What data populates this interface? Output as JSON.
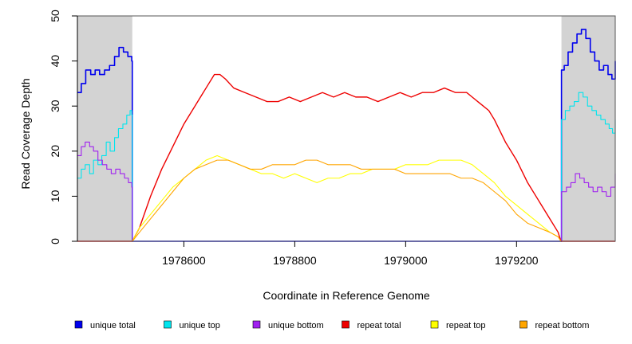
{
  "chart_data": {
    "type": "line",
    "title": "",
    "xlabel": "Coordinate in Reference Genome",
    "ylabel": "Read Coverage Depth",
    "xlim": [
      1978408,
      1979378
    ],
    "ylim": [
      0,
      50
    ],
    "x_ticks": [
      1978600,
      1978800,
      1979000,
      1979200
    ],
    "x_tick_labels": [
      "1978600",
      "1978800",
      "1979000",
      "1979200"
    ],
    "y_ticks": [
      0,
      10,
      20,
      30,
      40,
      50
    ],
    "y_tick_labels": [
      "0",
      "10",
      "20",
      "30",
      "40",
      "50"
    ],
    "shaded_regions": [
      {
        "x_start": 1978408,
        "x_end": 1978507,
        "fill": "#d3d3d3"
      },
      {
        "x_start": 1979281,
        "x_end": 1979378,
        "fill": "#d3d3d3"
      }
    ],
    "legend_position": "bottom",
    "series": [
      {
        "name": "unique total",
        "color": "#0000ee",
        "stroke_width": 1.6,
        "step": true,
        "x": [
          1978408,
          1978415,
          1978423,
          1978432,
          1978440,
          1978448,
          1978457,
          1978466,
          1978475,
          1978483,
          1978491,
          1978499,
          1978506,
          1978507,
          1978520,
          1979280,
          1979281,
          1979286,
          1979293,
          1979301,
          1979309,
          1979317,
          1979325,
          1979333,
          1979341,
          1979349,
          1979357,
          1979365,
          1979372,
          1979378
        ],
        "y": [
          33,
          35,
          38,
          37,
          38,
          37,
          38,
          39,
          41,
          43,
          42,
          41,
          40,
          0,
          0,
          0,
          38,
          39,
          42,
          44,
          46,
          47,
          45,
          42,
          40,
          38,
          39,
          37,
          36,
          40
        ]
      },
      {
        "name": "unique top",
        "color": "#00e5ee",
        "stroke_width": 1.1,
        "step": true,
        "x": [
          1978408,
          1978415,
          1978422,
          1978430,
          1978437,
          1978445,
          1978452,
          1978460,
          1978467,
          1978475,
          1978482,
          1978490,
          1978497,
          1978503,
          1978506,
          1978507,
          1978520,
          1979280,
          1979281,
          1979288,
          1979296,
          1979304,
          1979312,
          1979320,
          1979328,
          1979336,
          1979344,
          1979352,
          1979360,
          1979367,
          1979373,
          1979378
        ],
        "y": [
          14,
          16,
          17,
          15,
          18,
          17,
          19,
          22,
          20,
          23,
          25,
          26,
          28,
          29,
          28,
          0,
          0,
          0,
          27,
          29,
          30,
          31,
          33,
          32,
          30,
          29,
          28,
          27,
          26,
          25,
          24,
          27
        ]
      },
      {
        "name": "unique bottom",
        "color": "#a020f0",
        "stroke_width": 1.1,
        "step": true,
        "x": [
          1978408,
          1978415,
          1978422,
          1978430,
          1978437,
          1978445,
          1978453,
          1978461,
          1978469,
          1978477,
          1978485,
          1978493,
          1978500,
          1978506,
          1978507,
          1978520,
          1979280,
          1979281,
          1979290,
          1979298,
          1979306,
          1979314,
          1979322,
          1979330,
          1979338,
          1979346,
          1979354,
          1979362,
          1979370,
          1979378
        ],
        "y": [
          19,
          21,
          22,
          21,
          20,
          18,
          17,
          16,
          15,
          16,
          15,
          14,
          13,
          12,
          0,
          0,
          0,
          11,
          12,
          13,
          15,
          14,
          13,
          12,
          11,
          12,
          11,
          10,
          12,
          15
        ]
      },
      {
        "name": "repeat total",
        "color": "#ee0000",
        "stroke_width": 1.4,
        "step": false,
        "x": [
          1978408,
          1978506,
          1978507,
          1978520,
          1978540,
          1978560,
          1978580,
          1978600,
          1978620,
          1978640,
          1978655,
          1978665,
          1978675,
          1978690,
          1978710,
          1978730,
          1978750,
          1978770,
          1978790,
          1978810,
          1978830,
          1978850,
          1978870,
          1978890,
          1978910,
          1978930,
          1978950,
          1978970,
          1978990,
          1979010,
          1979030,
          1979050,
          1979070,
          1979090,
          1979110,
          1979120,
          1979130,
          1979140,
          1979150,
          1979160,
          1979180,
          1979200,
          1979220,
          1979240,
          1979260,
          1979275,
          1979280,
          1979378
        ],
        "y": [
          0,
          0,
          0,
          3,
          10,
          16,
          21,
          26,
          30,
          34,
          37,
          37,
          36,
          34,
          33,
          32,
          31,
          31,
          32,
          31,
          32,
          33,
          32,
          33,
          32,
          32,
          31,
          32,
          33,
          32,
          33,
          33,
          34,
          33,
          33,
          32,
          31,
          30,
          29,
          27,
          22,
          18,
          13,
          9,
          5,
          2,
          0,
          0
        ]
      },
      {
        "name": "repeat top",
        "color": "#ffff00",
        "stroke_width": 1.1,
        "step": false,
        "x": [
          1978408,
          1978506,
          1978507,
          1978520,
          1978540,
          1978560,
          1978580,
          1978600,
          1978620,
          1978640,
          1978660,
          1978680,
          1978700,
          1978720,
          1978740,
          1978760,
          1978780,
          1978800,
          1978820,
          1978840,
          1978860,
          1978880,
          1978900,
          1978920,
          1978940,
          1978960,
          1978980,
          1979000,
          1979020,
          1979040,
          1979060,
          1979080,
          1979100,
          1979120,
          1979140,
          1979160,
          1979180,
          1979200,
          1979220,
          1979240,
          1979260,
          1979275,
          1979280,
          1979378
        ],
        "y": [
          0,
          0,
          0,
          3,
          6,
          9,
          12,
          14,
          16,
          18,
          19,
          18,
          17,
          16,
          15,
          15,
          14,
          15,
          14,
          13,
          14,
          14,
          15,
          15,
          16,
          16,
          16,
          17,
          17,
          17,
          18,
          18,
          18,
          17,
          15,
          13,
          10,
          8,
          6,
          4,
          2,
          1,
          0,
          0
        ]
      },
      {
        "name": "repeat bottom",
        "color": "#ffa500",
        "stroke_width": 1.1,
        "step": false,
        "x": [
          1978408,
          1978506,
          1978507,
          1978520,
          1978540,
          1978560,
          1978580,
          1978600,
          1978620,
          1978640,
          1978660,
          1978680,
          1978700,
          1978720,
          1978740,
          1978760,
          1978780,
          1978800,
          1978820,
          1978840,
          1978860,
          1978880,
          1978900,
          1978920,
          1978940,
          1978960,
          1978980,
          1979000,
          1979020,
          1979040,
          1979060,
          1979080,
          1979100,
          1979120,
          1979140,
          1979160,
          1979180,
          1979200,
          1979220,
          1979240,
          1979260,
          1979275,
          1979280,
          1979378
        ],
        "y": [
          0,
          0,
          0,
          2,
          5,
          8,
          11,
          14,
          16,
          17,
          18,
          18,
          17,
          16,
          16,
          17,
          17,
          17,
          18,
          18,
          17,
          17,
          17,
          16,
          16,
          16,
          16,
          15,
          15,
          15,
          15,
          15,
          14,
          14,
          13,
          11,
          9,
          6,
          4,
          3,
          2,
          1,
          0,
          0
        ]
      }
    ]
  }
}
